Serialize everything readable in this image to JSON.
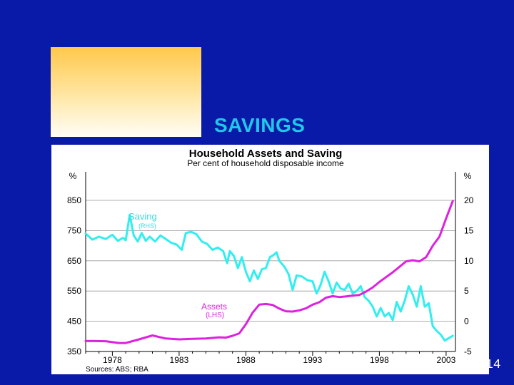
{
  "slide": {
    "title": "SAVINGS",
    "page_number": "14"
  },
  "colors": {
    "background": "#0a1aa8",
    "title": "#20c8e8",
    "saving_line": "#33eeee",
    "assets_line": "#dd22dd"
  },
  "chart_data": {
    "type": "line",
    "title": "Household Assets and Saving",
    "subtitle": "Per cent of household disposable income",
    "source": "Sources: ABS; RBA",
    "left_axis_unit": "%",
    "right_axis_unit": "%",
    "left_ylim": [
      350,
      850
    ],
    "right_ylim": [
      -5,
      20
    ],
    "left_ticks": [
      850,
      750,
      650,
      550,
      450,
      350
    ],
    "right_ticks": [
      20,
      15,
      10,
      5,
      0,
      -5
    ],
    "xlim": [
      1976,
      2003.7
    ],
    "x_ticks": [
      1978,
      1983,
      1988,
      1993,
      1998,
      2003
    ],
    "series": [
      {
        "name": "Saving",
        "axis_label": "(RHS)",
        "axis": "right",
        "points": [
          [
            1976.0,
            14.5
          ],
          [
            1976.5,
            13.5
          ],
          [
            1977.0,
            14.0
          ],
          [
            1977.5,
            13.6
          ],
          [
            1978.0,
            14.3
          ],
          [
            1978.4,
            13.3
          ],
          [
            1978.8,
            13.8
          ],
          [
            1979.0,
            13.4
          ],
          [
            1979.3,
            17.6
          ],
          [
            1979.6,
            14.2
          ],
          [
            1979.9,
            13.2
          ],
          [
            1980.2,
            14.6
          ],
          [
            1980.5,
            13.3
          ],
          [
            1980.8,
            14.0
          ],
          [
            1981.2,
            13.2
          ],
          [
            1981.6,
            14.2
          ],
          [
            1982.0,
            13.6
          ],
          [
            1982.4,
            13.0
          ],
          [
            1982.8,
            12.7
          ],
          [
            1983.2,
            11.8
          ],
          [
            1983.5,
            14.6
          ],
          [
            1983.9,
            14.8
          ],
          [
            1984.3,
            14.4
          ],
          [
            1984.7,
            13.2
          ],
          [
            1985.1,
            12.8
          ],
          [
            1985.5,
            11.8
          ],
          [
            1985.9,
            12.2
          ],
          [
            1986.3,
            11.6
          ],
          [
            1986.6,
            9.6
          ],
          [
            1986.8,
            11.6
          ],
          [
            1987.1,
            10.8
          ],
          [
            1987.4,
            8.8
          ],
          [
            1987.7,
            10.6
          ],
          [
            1988.0,
            8.2
          ],
          [
            1988.3,
            6.6
          ],
          [
            1988.6,
            8.4
          ],
          [
            1988.9,
            7.0
          ],
          [
            1989.2,
            8.6
          ],
          [
            1989.5,
            8.8
          ],
          [
            1989.8,
            10.6
          ],
          [
            1990.1,
            11.0
          ],
          [
            1990.3,
            11.4
          ],
          [
            1990.5,
            10.0
          ],
          [
            1990.9,
            9.0
          ],
          [
            1991.2,
            7.8
          ],
          [
            1991.5,
            5.2
          ],
          [
            1991.8,
            7.6
          ],
          [
            1992.2,
            7.4
          ],
          [
            1992.6,
            6.8
          ],
          [
            1993.0,
            6.6
          ],
          [
            1993.3,
            4.6
          ],
          [
            1993.6,
            6.0
          ],
          [
            1993.9,
            8.2
          ],
          [
            1994.2,
            6.6
          ],
          [
            1994.5,
            4.6
          ],
          [
            1994.8,
            6.4
          ],
          [
            1995.1,
            5.4
          ],
          [
            1995.4,
            5.2
          ],
          [
            1995.7,
            6.2
          ],
          [
            1996.0,
            4.6
          ],
          [
            1996.3,
            5.0
          ],
          [
            1996.6,
            5.8
          ],
          [
            1996.9,
            4.0
          ],
          [
            1997.2,
            3.4
          ],
          [
            1997.5,
            2.4
          ],
          [
            1997.8,
            0.8
          ],
          [
            1998.1,
            2.2
          ],
          [
            1998.4,
            0.8
          ],
          [
            1998.7,
            1.4
          ],
          [
            1999.0,
            0.2
          ],
          [
            1999.3,
            3.2
          ],
          [
            1999.6,
            1.6
          ],
          [
            1999.9,
            3.4
          ],
          [
            2000.2,
            5.8
          ],
          [
            2000.5,
            4.4
          ],
          [
            2000.8,
            2.4
          ],
          [
            2001.1,
            5.8
          ],
          [
            2001.4,
            2.4
          ],
          [
            2001.7,
            3.0
          ],
          [
            2002.0,
            -0.8
          ],
          [
            2002.3,
            -1.6
          ],
          [
            2002.6,
            -2.2
          ],
          [
            2002.9,
            -3.2
          ],
          [
            2003.2,
            -2.8
          ],
          [
            2003.5,
            -2.4
          ]
        ]
      },
      {
        "name": "Assets",
        "axis_label": "(LHS)",
        "axis": "left",
        "points": [
          [
            1976.0,
            385
          ],
          [
            1977.5,
            384
          ],
          [
            1978.5,
            378
          ],
          [
            1979.0,
            378
          ],
          [
            1980.0,
            390
          ],
          [
            1981.0,
            403
          ],
          [
            1982.0,
            393
          ],
          [
            1983.0,
            390
          ],
          [
            1984.0,
            392
          ],
          [
            1985.0,
            393
          ],
          [
            1986.0,
            397
          ],
          [
            1986.5,
            396
          ],
          [
            1987.0,
            402
          ],
          [
            1987.5,
            410
          ],
          [
            1988.0,
            440
          ],
          [
            1988.5,
            478
          ],
          [
            1989.0,
            505
          ],
          [
            1989.5,
            507
          ],
          [
            1990.0,
            504
          ],
          [
            1990.5,
            492
          ],
          [
            1991.0,
            483
          ],
          [
            1991.5,
            482
          ],
          [
            1992.0,
            486
          ],
          [
            1992.5,
            493
          ],
          [
            1993.0,
            505
          ],
          [
            1993.5,
            513
          ],
          [
            1994.0,
            528
          ],
          [
            1994.5,
            533
          ],
          [
            1995.0,
            530
          ],
          [
            1995.5,
            532
          ],
          [
            1996.0,
            535
          ],
          [
            1996.5,
            537
          ],
          [
            1997.0,
            548
          ],
          [
            1997.5,
            562
          ],
          [
            1998.0,
            580
          ],
          [
            1998.5,
            596
          ],
          [
            1999.0,
            612
          ],
          [
            1999.5,
            630
          ],
          [
            2000.0,
            648
          ],
          [
            2000.5,
            652
          ],
          [
            2001.0,
            648
          ],
          [
            2001.5,
            662
          ],
          [
            2002.0,
            700
          ],
          [
            2002.5,
            730
          ],
          [
            2003.0,
            790
          ],
          [
            2003.5,
            848
          ]
        ]
      }
    ],
    "annotations": [
      {
        "text": "Saving",
        "series": "Saving"
      },
      {
        "text": "(RHS)",
        "series": "Saving"
      },
      {
        "text": "Assets",
        "series": "Assets"
      },
      {
        "text": "(LHS)",
        "series": "Assets"
      }
    ]
  }
}
